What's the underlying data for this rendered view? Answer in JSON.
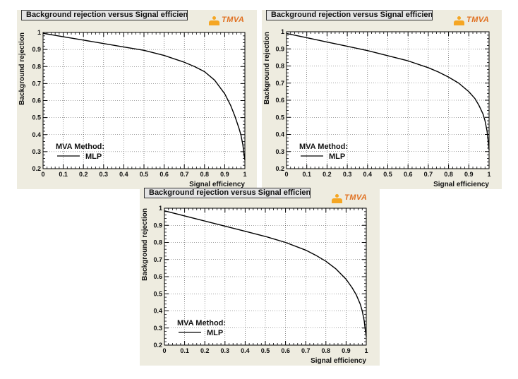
{
  "logo_text": "TMVA",
  "chart_data": [
    {
      "type": "line",
      "title": "Background rejection versus Signal efficiency",
      "xlabel": "Signal efficiency",
      "ylabel": "Background rejection",
      "xlim": [
        0,
        1
      ],
      "ylim": [
        0.2,
        1
      ],
      "grid": true,
      "legend": {
        "placement": "bottom-left",
        "header": "MVA Method:",
        "entries": [
          "MLP"
        ]
      },
      "x_ticks": [
        "0",
        "0.1",
        "0.2",
        "0.3",
        "0.4",
        "0.5",
        "0.6",
        "0.7",
        "0.8",
        "0.9",
        "1"
      ],
      "y_ticks": [
        "0.2",
        "0.3",
        "0.4",
        "0.5",
        "0.6",
        "0.7",
        "0.8",
        "0.9",
        "1"
      ],
      "series": [
        {
          "name": "MLP",
          "x": [
            0,
            0.1,
            0.2,
            0.3,
            0.4,
            0.5,
            0.6,
            0.7,
            0.75,
            0.8,
            0.85,
            0.9,
            0.93,
            0.95,
            0.97,
            0.98,
            0.99,
            0.995,
            1.0
          ],
          "y": [
            0.995,
            0.975,
            0.955,
            0.935,
            0.915,
            0.895,
            0.865,
            0.825,
            0.8,
            0.77,
            0.72,
            0.64,
            0.57,
            0.51,
            0.44,
            0.4,
            0.34,
            0.29,
            0.25
          ]
        }
      ]
    },
    {
      "type": "line",
      "title": "Background rejection versus Signal efficiency",
      "xlabel": "Signal efficiency",
      "ylabel": "Background rejection",
      "xlim": [
        0,
        1
      ],
      "ylim": [
        0.2,
        1
      ],
      "grid": true,
      "legend": {
        "placement": "bottom-left",
        "header": "MVA Method:",
        "entries": [
          "MLP"
        ]
      },
      "x_ticks": [
        "0",
        "0.1",
        "0.2",
        "0.3",
        "0.4",
        "0.5",
        "0.6",
        "0.7",
        "0.8",
        "0.9",
        "1"
      ],
      "y_ticks": [
        "0.2",
        "0.3",
        "0.4",
        "0.5",
        "0.6",
        "0.7",
        "0.8",
        "0.9",
        "1"
      ],
      "series": [
        {
          "name": "MLP",
          "x": [
            0,
            0.1,
            0.2,
            0.3,
            0.4,
            0.5,
            0.6,
            0.7,
            0.75,
            0.8,
            0.85,
            0.9,
            0.93,
            0.95,
            0.97,
            0.98,
            0.99,
            0.995,
            1.0
          ],
          "y": [
            0.99,
            0.965,
            0.94,
            0.915,
            0.89,
            0.86,
            0.83,
            0.79,
            0.765,
            0.735,
            0.7,
            0.65,
            0.61,
            0.57,
            0.52,
            0.48,
            0.42,
            0.37,
            0.31
          ]
        }
      ]
    },
    {
      "type": "line",
      "title": "Background rejection versus Signal efficiency",
      "xlabel": "Signal efficiency",
      "ylabel": "Background rejection",
      "xlim": [
        0,
        1
      ],
      "ylim": [
        0.2,
        1
      ],
      "grid": true,
      "legend": {
        "placement": "bottom-left",
        "header": "MVA Method:",
        "entries": [
          "MLP"
        ]
      },
      "x_ticks": [
        "0",
        "0.1",
        "0.2",
        "0.3",
        "0.4",
        "0.5",
        "0.6",
        "0.7",
        "0.8",
        "0.9",
        "1"
      ],
      "y_ticks": [
        "0.2",
        "0.3",
        "0.4",
        "0.5",
        "0.6",
        "0.7",
        "0.8",
        "0.9",
        "1"
      ],
      "series": [
        {
          "name": "MLP",
          "x": [
            0,
            0.1,
            0.2,
            0.3,
            0.4,
            0.5,
            0.6,
            0.7,
            0.75,
            0.8,
            0.85,
            0.9,
            0.93,
            0.95,
            0.97,
            0.98,
            0.99,
            0.995,
            1.0
          ],
          "y": [
            0.985,
            0.955,
            0.925,
            0.895,
            0.865,
            0.835,
            0.8,
            0.755,
            0.725,
            0.69,
            0.645,
            0.585,
            0.535,
            0.495,
            0.44,
            0.4,
            0.34,
            0.29,
            0.25
          ]
        }
      ]
    }
  ]
}
